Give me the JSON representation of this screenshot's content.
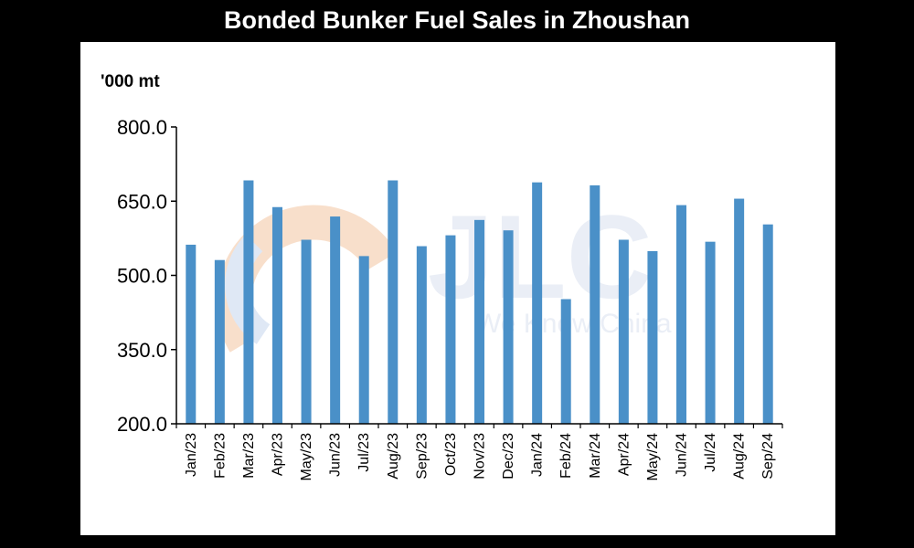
{
  "chart_data": {
    "type": "bar",
    "title": "Bonded Bunker Fuel Sales in Zhoushan",
    "unit_label": "'000 mt",
    "xlabel": "",
    "ylabel": "",
    "ylim": [
      200,
      800
    ],
    "yticks": [
      "800.0",
      "650.0",
      "500.0",
      "350.0",
      "200.0"
    ],
    "ytick_values": [
      800,
      650,
      500,
      350,
      200
    ],
    "grid": false,
    "legend": "none",
    "bar_color": "#4a90c8",
    "categories": [
      "Jan/23",
      "Feb/23",
      "Mar/23",
      "Apr/23",
      "May/23",
      "Jun/23",
      "Jul/23",
      "Aug/23",
      "Sep/23",
      "Oct/23",
      "Nov/23",
      "Dec/23",
      "Jan/24",
      "Feb/24",
      "Mar/24",
      "Apr/24",
      "May/24",
      "Jun/24",
      "Jul/24",
      "Aug/24",
      "Sep/24"
    ],
    "values": [
      562,
      531,
      692,
      638,
      572,
      619,
      539,
      692,
      559,
      581,
      612,
      591,
      688,
      452,
      682,
      572,
      549,
      642,
      568,
      655,
      603
    ]
  },
  "watermark": {
    "logo_text": "JLC",
    "tagline": "We Know China",
    "colors": [
      "#c5d6ee",
      "#f4c6a2",
      "#c7d3e6"
    ]
  }
}
